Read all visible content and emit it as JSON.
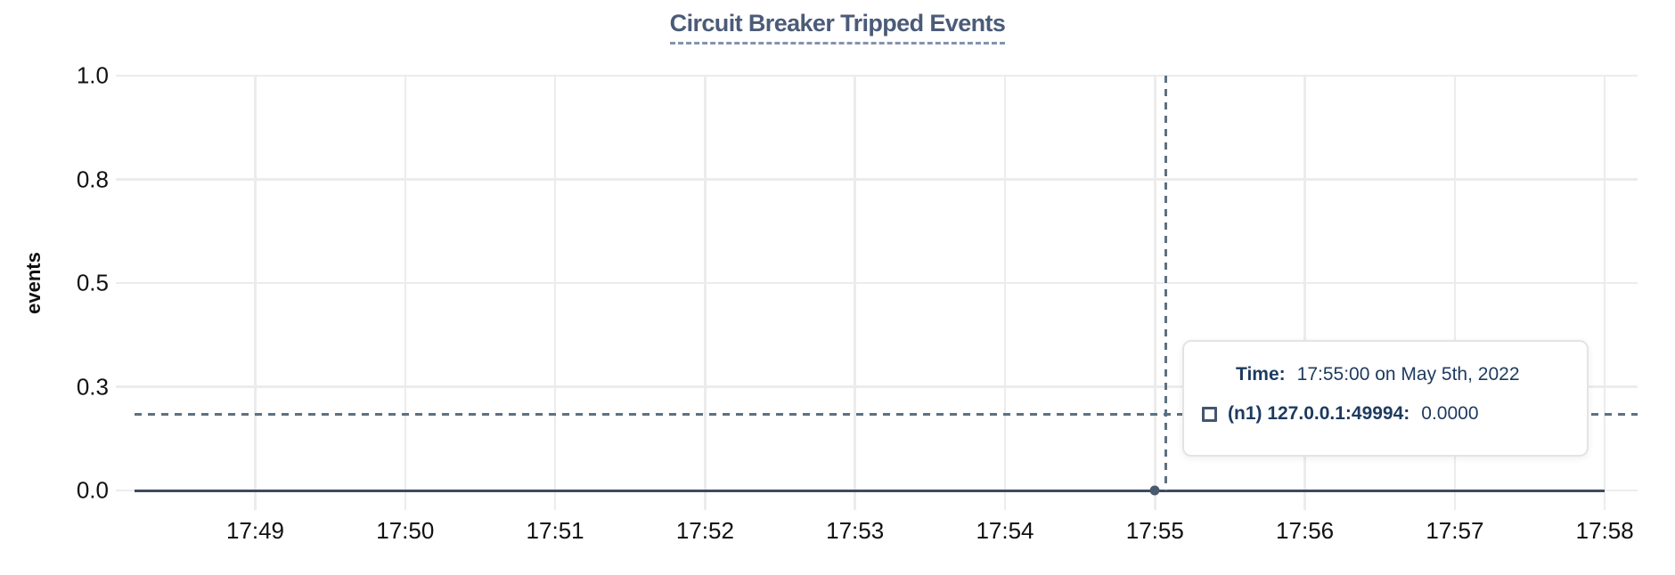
{
  "chart": {
    "title": "Circuit Breaker Tripped Events",
    "y_axis": {
      "label": "events",
      "ticks": [
        {
          "label": "1.0",
          "value": 1.0
        },
        {
          "label": "0.8",
          "value": 0.75
        },
        {
          "label": "0.5",
          "value": 0.5
        },
        {
          "label": "0.3",
          "value": 0.25
        },
        {
          "label": "0.0",
          "value": 0.0
        }
      ]
    },
    "x_axis": {
      "ticks": [
        "17:49",
        "17:50",
        "17:51",
        "17:52",
        "17:53",
        "17:54",
        "17:55",
        "17:56",
        "17:57",
        "17:58"
      ]
    }
  },
  "tooltip": {
    "time_label": "Time:",
    "time_value": "17:55:00 on May 5th, 2022",
    "series_label": "(n1) 127.0.0.1:49994:",
    "series_value": "0.0000"
  },
  "colors": {
    "title": "#4b5b78",
    "title_underline": "#8592ad",
    "gridline": "#ececec",
    "tick_label": "#111111",
    "series_line": "#3d4a5f",
    "series_dot": "#4a5a6e",
    "crosshair": "#5d7181",
    "tooltip_text": "#1d3a5f",
    "tooltip_border": "#e4e4e4",
    "legend_swatch_border": "#44566e"
  },
  "chart_data": {
    "type": "line",
    "title": "Circuit Breaker Tripped Events",
    "xlabel": "",
    "ylabel": "events",
    "ylim": [
      0.0,
      1.0
    ],
    "y_tick_labels": [
      "1.0",
      "0.8",
      "0.5",
      "0.3",
      "0.0"
    ],
    "x": [
      "17:49",
      "17:50",
      "17:51",
      "17:52",
      "17:53",
      "17:54",
      "17:55",
      "17:56",
      "17:57",
      "17:58"
    ],
    "series": [
      {
        "name": "(n1) 127.0.0.1:49994",
        "values": [
          0,
          0,
          0,
          0,
          0,
          0,
          0,
          0,
          0,
          0
        ]
      }
    ],
    "grid": true,
    "legend_position": "cursor-tooltip-overlay",
    "cursor": {
      "x": "17:55",
      "time_readout": "17:55:00 on May 5th, 2022",
      "series_readout": 0.0,
      "highlighted_point": {
        "x": "17:55",
        "y": 0.0
      }
    }
  }
}
